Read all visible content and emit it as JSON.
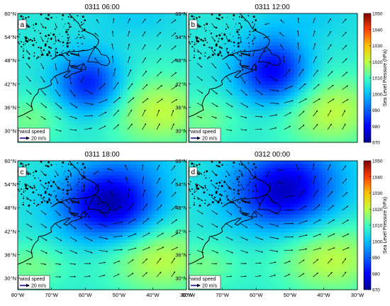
{
  "panels": [
    {
      "letter": "a",
      "title": "0311 06:00",
      "low_pressure_hpa": 982,
      "low_center": {
        "lon": -59,
        "lat": 42
      }
    },
    {
      "letter": "b",
      "title": "0311 12:00",
      "low_pressure_hpa": 978,
      "low_center": {
        "lon": -55,
        "lat": 45
      }
    },
    {
      "letter": "c",
      "title": "0311 18:00",
      "low_pressure_hpa": 972,
      "low_center": {
        "lon": -53,
        "lat": 49
      }
    },
    {
      "letter": "d",
      "title": "0312 00:00",
      "low_pressure_hpa": 975,
      "low_center": {
        "lon": -52,
        "lat": 52
      }
    }
  ],
  "x_ticks": [
    "80°W",
    "70°W",
    "60°W",
    "50°W",
    "40°W",
    "30°W"
  ],
  "y_ticks": [
    "60°N",
    "54°N",
    "48°N",
    "42°N",
    "36°N",
    "30°N"
  ],
  "colorbar": {
    "label": "Sea Level Pressure (hPa)",
    "ticks": [
      "970",
      "980",
      "990",
      "1000",
      "1010",
      "1020",
      "1030",
      "1040",
      "1050"
    ],
    "range": [
      970,
      1050
    ]
  },
  "legend": {
    "title": "wind speed",
    "value_label": "20 m/s"
  },
  "colors": {
    "low": "#00008f",
    "mid": "#ffff00",
    "high": "#800000",
    "coast": "#000000"
  }
}
